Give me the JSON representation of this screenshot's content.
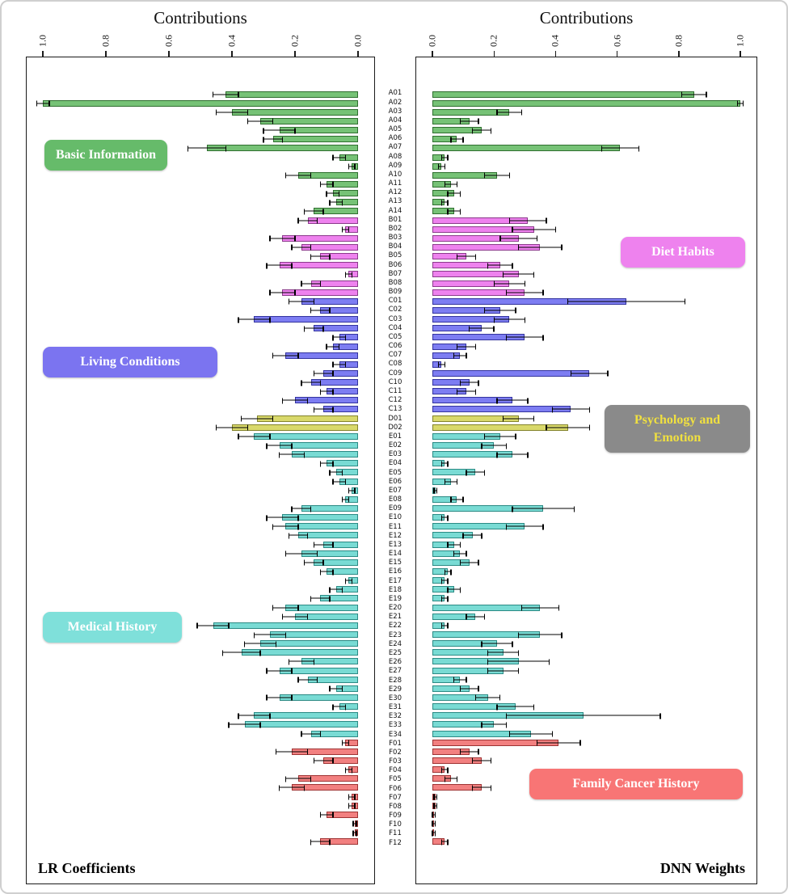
{
  "titles": {
    "left": "Contributions",
    "right": "Contributions"
  },
  "corner_labels": {
    "left": "LR Coefficients",
    "right": "DNN Weights"
  },
  "axis": {
    "left_ticks": [
      "1.0",
      "0.8",
      "0.6",
      "0.4",
      "0.2",
      "0.0"
    ],
    "right_ticks": [
      "0.0",
      "0.2",
      "0.4",
      "0.6",
      "0.8",
      "1.0"
    ]
  },
  "legend": {
    "basic_information": "Basic Information",
    "diet_habits": "Diet Habits",
    "living_conditions": "Living Conditions",
    "psychology_emotion": "Psychology and Emotion",
    "medical_history": "Medical History",
    "family_cancer_history": "Family Cancer History"
  },
  "colors": {
    "groups": {
      "A": {
        "fill": "#76c276",
        "edge": "#2f6f2f"
      },
      "B": {
        "fill": "#ee82ee",
        "edge": "#8b3a8b"
      },
      "C": {
        "fill": "#7d7df2",
        "edge": "#33339e"
      },
      "D": {
        "fill": "#d9d96b",
        "edge": "#83832b"
      },
      "E": {
        "fill": "#79dbd4",
        "edge": "#2b8a84"
      },
      "F": {
        "fill": "#f28080",
        "edge": "#9e3333"
      }
    },
    "legend": {
      "basic_information": {
        "bg": "#66bb6a",
        "text": "#ffffff"
      },
      "diet_habits": {
        "bg": "#ee82ee",
        "text": "#ffffff"
      },
      "living_conditions": {
        "bg": "#7b74f0",
        "text": "#ffffff"
      },
      "psychology_emotion": {
        "bg": "#8a8a8a",
        "text": "#f0e040"
      },
      "medical_history": {
        "bg": "#7fe0da",
        "text": "#ffffff"
      },
      "family_cancer_history": {
        "bg": "#f87575",
        "text": "#ffffff"
      }
    }
  },
  "chart_data": {
    "type": "bar",
    "orientation": "horizontal",
    "xlim": [
      0,
      1
    ],
    "title": "Contributions",
    "categories": [
      "A01",
      "A02",
      "A03",
      "A04",
      "A05",
      "A06",
      "A07",
      "A08",
      "A09",
      "A10",
      "A11",
      "A12",
      "A13",
      "A14",
      "B01",
      "B02",
      "B03",
      "B04",
      "B05",
      "B06",
      "B07",
      "B08",
      "B09",
      "C01",
      "C02",
      "C03",
      "C04",
      "C05",
      "C06",
      "C07",
      "C08",
      "C09",
      "C10",
      "C11",
      "C12",
      "C13",
      "D01",
      "D02",
      "E01",
      "E02",
      "E03",
      "E04",
      "E05",
      "E06",
      "E07",
      "E08",
      "E09",
      "E10",
      "E11",
      "E12",
      "E13",
      "E14",
      "E15",
      "E16",
      "E17",
      "E18",
      "E19",
      "E20",
      "E21",
      "E22",
      "E23",
      "E24",
      "E25",
      "E26",
      "E27",
      "E28",
      "E29",
      "E30",
      "E31",
      "E32",
      "E33",
      "E34",
      "F01",
      "F02",
      "F03",
      "F04",
      "F05",
      "F06",
      "F07",
      "F08",
      "F09",
      "F10",
      "F11",
      "F12"
    ],
    "group_names": {
      "A": "Basic Information",
      "B": "Diet Habits",
      "C": "Living Conditions",
      "D": "Psychology and Emotion",
      "E": "Medical History",
      "F": "Family Cancer History"
    },
    "series": [
      {
        "name": "LR Coefficients",
        "values": [
          0.42,
          1.0,
          0.4,
          0.31,
          0.25,
          0.27,
          0.48,
          0.06,
          0.02,
          0.19,
          0.1,
          0.08,
          0.07,
          0.14,
          0.16,
          0.04,
          0.24,
          0.18,
          0.12,
          0.25,
          0.03,
          0.15,
          0.24,
          0.18,
          0.12,
          0.33,
          0.14,
          0.06,
          0.08,
          0.23,
          0.06,
          0.11,
          0.15,
          0.1,
          0.2,
          0.11,
          0.32,
          0.4,
          0.33,
          0.25,
          0.21,
          0.1,
          0.07,
          0.06,
          0.02,
          0.04,
          0.18,
          0.24,
          0.23,
          0.19,
          0.11,
          0.18,
          0.14,
          0.1,
          0.03,
          0.07,
          0.12,
          0.23,
          0.2,
          0.46,
          0.28,
          0.31,
          0.37,
          0.18,
          0.25,
          0.16,
          0.07,
          0.25,
          0.06,
          0.33,
          0.36,
          0.15,
          0.04,
          0.21,
          0.11,
          0.03,
          0.19,
          0.21,
          0.02,
          0.02,
          0.1,
          0.01,
          0.01,
          0.12
        ],
        "errors": [
          0.04,
          0.02,
          0.05,
          0.04,
          0.05,
          0.03,
          0.06,
          0.02,
          0.01,
          0.04,
          0.02,
          0.02,
          0.02,
          0.03,
          0.03,
          0.01,
          0.04,
          0.03,
          0.03,
          0.04,
          0.01,
          0.03,
          0.04,
          0.04,
          0.03,
          0.05,
          0.03,
          0.02,
          0.02,
          0.04,
          0.02,
          0.03,
          0.03,
          0.02,
          0.04,
          0.03,
          0.05,
          0.05,
          0.05,
          0.04,
          0.04,
          0.02,
          0.02,
          0.02,
          0.01,
          0.01,
          0.03,
          0.05,
          0.04,
          0.03,
          0.03,
          0.05,
          0.03,
          0.02,
          0.01,
          0.02,
          0.03,
          0.04,
          0.04,
          0.05,
          0.05,
          0.05,
          0.06,
          0.04,
          0.04,
          0.03,
          0.02,
          0.04,
          0.02,
          0.05,
          0.05,
          0.03,
          0.01,
          0.05,
          0.03,
          0.01,
          0.04,
          0.04,
          0.01,
          0.01,
          0.02,
          0.005,
          0.005,
          0.03
        ]
      },
      {
        "name": "DNN Weights",
        "values": [
          0.85,
          1.0,
          0.25,
          0.12,
          0.16,
          0.08,
          0.61,
          0.04,
          0.03,
          0.21,
          0.06,
          0.07,
          0.04,
          0.07,
          0.31,
          0.33,
          0.28,
          0.35,
          0.11,
          0.22,
          0.28,
          0.25,
          0.3,
          0.63,
          0.22,
          0.25,
          0.16,
          0.3,
          0.11,
          0.09,
          0.03,
          0.51,
          0.12,
          0.11,
          0.26,
          0.45,
          0.28,
          0.44,
          0.22,
          0.2,
          0.26,
          0.04,
          0.14,
          0.06,
          0.01,
          0.08,
          0.36,
          0.04,
          0.3,
          0.13,
          0.07,
          0.09,
          0.12,
          0.05,
          0.04,
          0.07,
          0.04,
          0.35,
          0.14,
          0.04,
          0.35,
          0.21,
          0.23,
          0.28,
          0.23,
          0.09,
          0.12,
          0.18,
          0.27,
          0.49,
          0.2,
          0.32,
          0.41,
          0.12,
          0.16,
          0.04,
          0.06,
          0.16,
          0.01,
          0.01,
          0.005,
          0.005,
          0.005,
          0.04
        ],
        "errors": [
          0.04,
          0.01,
          0.04,
          0.03,
          0.03,
          0.02,
          0.06,
          0.01,
          0.01,
          0.04,
          0.02,
          0.02,
          0.01,
          0.02,
          0.06,
          0.07,
          0.06,
          0.07,
          0.03,
          0.04,
          0.05,
          0.05,
          0.06,
          0.19,
          0.05,
          0.05,
          0.04,
          0.06,
          0.03,
          0.02,
          0.01,
          0.06,
          0.03,
          0.03,
          0.05,
          0.06,
          0.05,
          0.07,
          0.05,
          0.04,
          0.05,
          0.01,
          0.03,
          0.02,
          0.005,
          0.02,
          0.1,
          0.01,
          0.06,
          0.03,
          0.02,
          0.02,
          0.03,
          0.01,
          0.01,
          0.02,
          0.01,
          0.06,
          0.03,
          0.01,
          0.07,
          0.05,
          0.05,
          0.1,
          0.05,
          0.02,
          0.03,
          0.04,
          0.06,
          0.25,
          0.04,
          0.07,
          0.07,
          0.03,
          0.03,
          0.01,
          0.02,
          0.03,
          0.005,
          0.005,
          0.005,
          0.005,
          0.005,
          0.01
        ]
      }
    ]
  }
}
